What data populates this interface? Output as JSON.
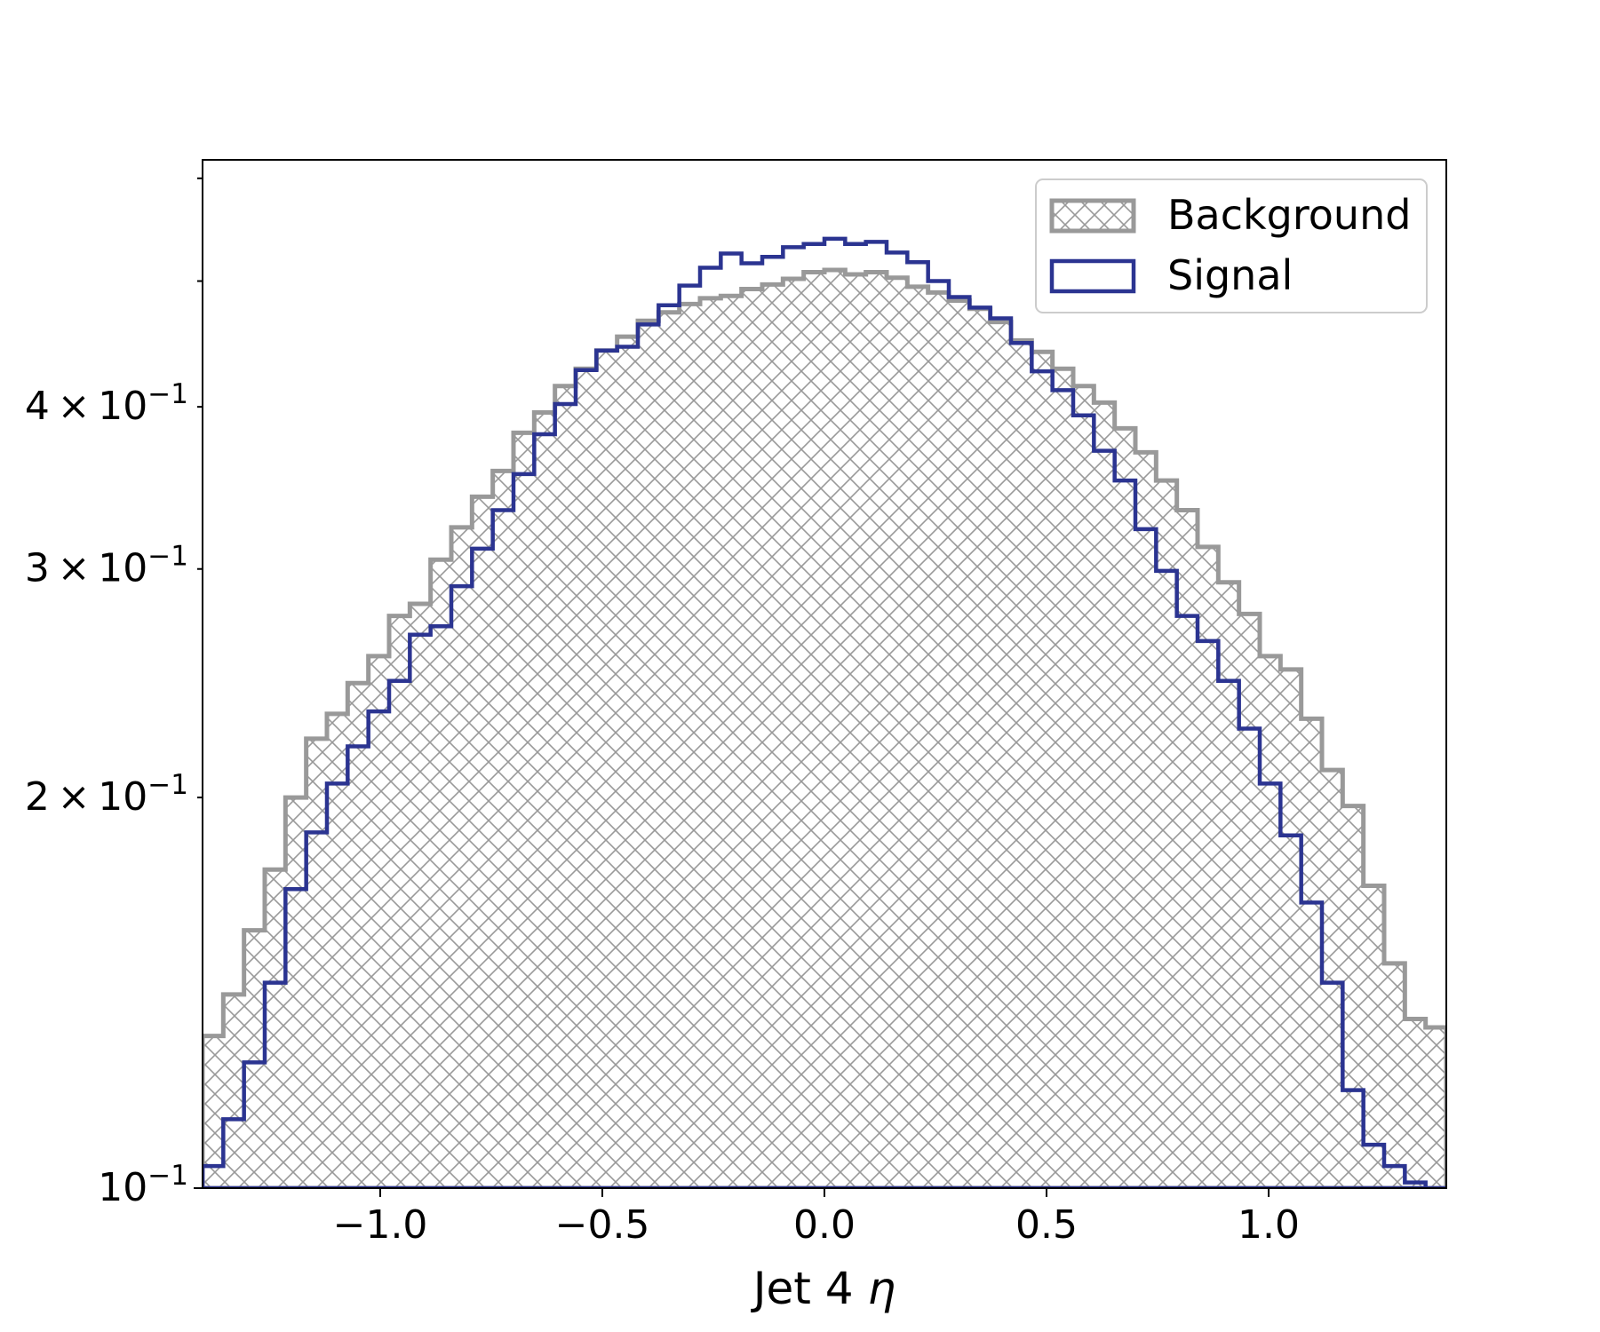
{
  "chart_data": {
    "type": "histogram",
    "title": "",
    "xlabel": "Jet 4 η",
    "ylabel": "",
    "xscale": "linear",
    "yscale": "log",
    "xlim": [
      -1.4,
      1.4
    ],
    "ylim": [
      0.1,
      0.62
    ],
    "x_ticks": [
      -1.0,
      -0.5,
      0.0,
      0.5,
      1.0
    ],
    "x_tick_labels": [
      "−1.0",
      "−0.5",
      "0.0",
      "0.5",
      "1.0"
    ],
    "y_ticks": [
      {
        "value": 0.1,
        "base": "10",
        "exp": "−1",
        "coef": ""
      },
      {
        "value": 0.2,
        "base": "10",
        "exp": "−1",
        "coef": "2"
      },
      {
        "value": 0.3,
        "base": "10",
        "exp": "−1",
        "coef": "3"
      },
      {
        "value": 0.4,
        "base": "10",
        "exp": "−1",
        "coef": "4"
      }
    ],
    "grid": false,
    "legend_position": "top-right",
    "bin_edges_range": [
      -1.4,
      1.4
    ],
    "n_bins": 60,
    "series": [
      {
        "name": "Background",
        "style": "hatched",
        "color": "#999999",
        "values": [
          0.131,
          0.141,
          0.158,
          0.176,
          0.2,
          0.222,
          0.232,
          0.245,
          0.257,
          0.276,
          0.282,
          0.305,
          0.323,
          0.341,
          0.357,
          0.382,
          0.396,
          0.415,
          0.428,
          0.442,
          0.453,
          0.466,
          0.473,
          0.48,
          0.485,
          0.487,
          0.493,
          0.497,
          0.502,
          0.508,
          0.51,
          0.506,
          0.508,
          0.503,
          0.495,
          0.49,
          0.483,
          0.476,
          0.465,
          0.45,
          0.441,
          0.428,
          0.415,
          0.403,
          0.385,
          0.369,
          0.351,
          0.333,
          0.312,
          0.293,
          0.277,
          0.257,
          0.251,
          0.23,
          0.21,
          0.197,
          0.171,
          0.149,
          0.135,
          0.133
        ]
      },
      {
        "name": "Signal",
        "style": "step",
        "color": "#2b3491",
        "values": [
          0.104,
          0.113,
          0.125,
          0.144,
          0.17,
          0.188,
          0.205,
          0.219,
          0.233,
          0.246,
          0.267,
          0.271,
          0.291,
          0.311,
          0.333,
          0.355,
          0.381,
          0.402,
          0.427,
          0.442,
          0.445,
          0.463,
          0.479,
          0.496,
          0.512,
          0.525,
          0.516,
          0.522,
          0.531,
          0.534,
          0.539,
          0.534,
          0.536,
          0.526,
          0.517,
          0.5,
          0.486,
          0.477,
          0.468,
          0.448,
          0.426,
          0.412,
          0.394,
          0.37,
          0.351,
          0.322,
          0.299,
          0.276,
          0.264,
          0.246,
          0.226,
          0.205,
          0.187,
          0.166,
          0.144,
          0.119,
          0.108,
          0.104,
          0.101,
          0.094
        ]
      }
    ]
  }
}
